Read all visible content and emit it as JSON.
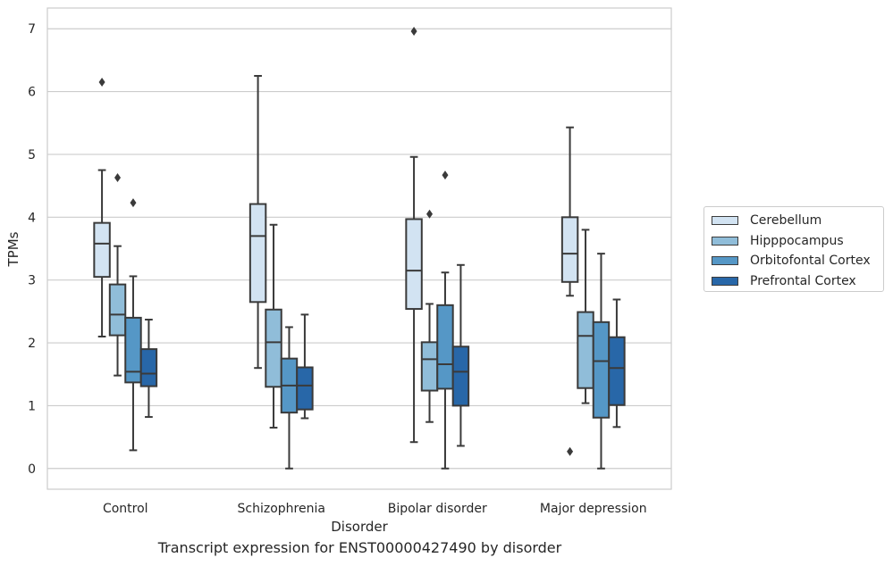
{
  "caption": "Transcript expression for ENST00000427490 by disorder",
  "legend": {
    "items": [
      {
        "label": "Cerebellum",
        "color": "#d2e3f2"
      },
      {
        "label": "Hipppocampus",
        "color": "#90bdd9"
      },
      {
        "label": "Orbitofontal Cortex",
        "color": "#5597c6"
      },
      {
        "label": "Prefrontal Cortex",
        "color": "#2867a8"
      }
    ]
  },
  "chart_data": {
    "type": "box",
    "xlabel": "Disorder",
    "ylabel": "TPMs",
    "ylim": [
      -0.33,
      7.33
    ],
    "yticks": [
      0,
      1,
      2,
      3,
      4,
      5,
      6,
      7
    ],
    "grid": "horizontal",
    "legend_position": "right",
    "categories": [
      "Control",
      "Schizophrenia",
      "Bipolar disorder",
      "Major depression"
    ],
    "series": [
      {
        "name": "Cerebellum",
        "color": "#d2e3f2",
        "boxes": [
          {
            "whisker_low": 2.1,
            "q1": 3.05,
            "median": 3.58,
            "q3": 3.91,
            "whisker_high": 4.75,
            "outliers": [
              6.15
            ]
          },
          {
            "whisker_low": 1.6,
            "q1": 2.65,
            "median": 3.7,
            "q3": 4.21,
            "whisker_high": 6.25,
            "outliers": []
          },
          {
            "whisker_low": 0.42,
            "q1": 2.54,
            "median": 3.15,
            "q3": 3.97,
            "whisker_high": 4.96,
            "outliers": [
              6.96
            ]
          },
          {
            "whisker_low": 2.75,
            "q1": 2.97,
            "median": 3.42,
            "q3": 4.0,
            "whisker_high": 5.43,
            "outliers": [
              0.27
            ]
          }
        ]
      },
      {
        "name": "Hipppocampus",
        "color": "#90bdd9",
        "boxes": [
          {
            "whisker_low": 1.48,
            "q1": 2.12,
            "median": 2.45,
            "q3": 2.93,
            "whisker_high": 3.54,
            "outliers": [
              4.63
            ]
          },
          {
            "whisker_low": 0.65,
            "q1": 1.3,
            "median": 2.01,
            "q3": 2.53,
            "whisker_high": 3.88,
            "outliers": []
          },
          {
            "whisker_low": 0.74,
            "q1": 1.24,
            "median": 1.74,
            "q3": 2.01,
            "whisker_high": 2.62,
            "outliers": [
              4.05
            ]
          },
          {
            "whisker_low": 1.04,
            "q1": 1.28,
            "median": 2.11,
            "q3": 2.49,
            "whisker_high": 3.8,
            "outliers": []
          }
        ]
      },
      {
        "name": "Orbitofontal Cortex",
        "color": "#5597c6",
        "boxes": [
          {
            "whisker_low": 0.29,
            "q1": 1.37,
            "median": 1.54,
            "q3": 2.4,
            "whisker_high": 3.06,
            "outliers": [
              4.23
            ]
          },
          {
            "whisker_low": 0.0,
            "q1": 0.89,
            "median": 1.32,
            "q3": 1.75,
            "whisker_high": 2.25,
            "outliers": []
          },
          {
            "whisker_low": 0.0,
            "q1": 1.27,
            "median": 1.66,
            "q3": 2.6,
            "whisker_high": 3.12,
            "outliers": [
              4.67
            ]
          },
          {
            "whisker_low": 0.0,
            "q1": 0.81,
            "median": 1.71,
            "q3": 2.33,
            "whisker_high": 3.42,
            "outliers": []
          }
        ]
      },
      {
        "name": "Prefrontal Cortex",
        "color": "#2867a8",
        "boxes": [
          {
            "whisker_low": 0.82,
            "q1": 1.31,
            "median": 1.51,
            "q3": 1.9,
            "whisker_high": 2.37,
            "outliers": []
          },
          {
            "whisker_low": 0.8,
            "q1": 0.94,
            "median": 1.32,
            "q3": 1.61,
            "whisker_high": 2.45,
            "outliers": []
          },
          {
            "whisker_low": 0.36,
            "q1": 1.0,
            "median": 1.54,
            "q3": 1.94,
            "whisker_high": 3.24,
            "outliers": []
          },
          {
            "whisker_low": 0.66,
            "q1": 1.01,
            "median": 1.6,
            "q3": 2.09,
            "whisker_high": 2.69,
            "outliers": []
          }
        ]
      }
    ]
  }
}
